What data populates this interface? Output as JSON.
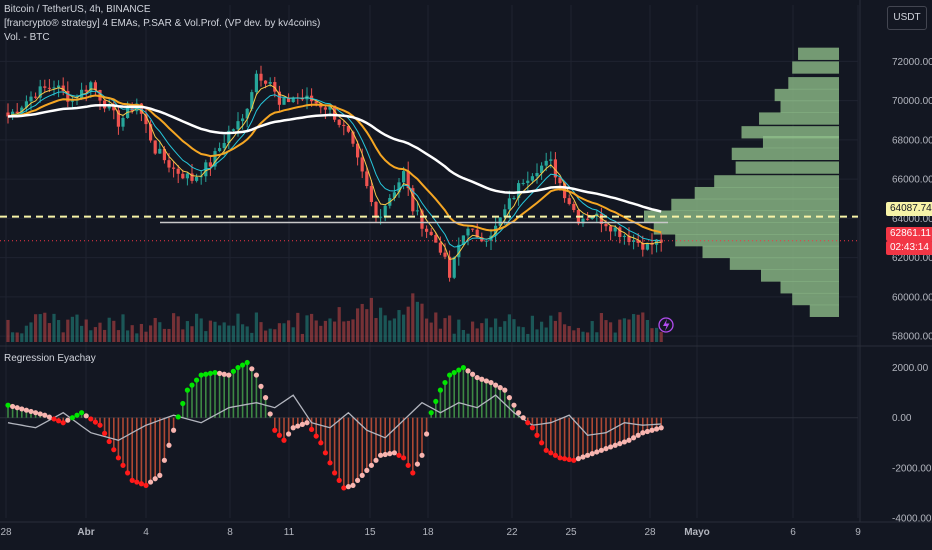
{
  "header": {
    "title": "Bitcoin / TetherUS, 4h, BINANCE",
    "indicator": "[francrypto® strategy] 4 EMAs, P.SAR & Vol.Prof. (VP dev. by kv4coins)",
    "volume_label": "Vol. - BTC",
    "currency_button": "USDT"
  },
  "subpane": {
    "title": "Regression Eyachay"
  },
  "price_badges": {
    "line_price": "64087.74",
    "last_price": "62861.11",
    "countdown": "02:43:14"
  },
  "colors": {
    "background": "#131722",
    "up": "#26a69a",
    "down": "#ef5350",
    "ema_yellow": "#f7c948",
    "ema_cyan": "#26c6da",
    "ema_orange": "#f5a623",
    "ema_white": "#ffffff",
    "volume_profile": "#8fbf8a",
    "osc_green": "#00e600",
    "osc_red": "#ff1a1a",
    "osc_pink": "#f8b5b0"
  },
  "chart_data": [
    {
      "type": "candlestick",
      "title": "Bitcoin / TetherUS, 4h, BINANCE",
      "y_ticks": [
        "72000.00",
        "70000.00",
        "68000.00",
        "66000.00",
        "64000.00",
        "62000.00",
        "60000.00",
        "58000.00"
      ],
      "ylim": [
        57700,
        73600
      ],
      "x_ticks": [
        "28",
        "Abr",
        "4",
        "8",
        "11",
        "15",
        "18",
        "22",
        "25",
        "28",
        "Mayo",
        "6",
        "9"
      ],
      "close_path": [
        [
          0,
          69200
        ],
        [
          6,
          70400
        ],
        [
          10,
          70800
        ],
        [
          14,
          70000
        ],
        [
          18,
          70900
        ],
        [
          20,
          70200
        ],
        [
          24,
          68900
        ],
        [
          28,
          69900
        ],
        [
          32,
          67500
        ],
        [
          36,
          66500
        ],
        [
          40,
          66000
        ],
        [
          44,
          66800
        ],
        [
          48,
          68400
        ],
        [
          51,
          69000
        ],
        [
          54,
          71400
        ],
        [
          57,
          71000
        ],
        [
          59,
          69700
        ],
        [
          62,
          70200
        ],
        [
          66,
          70000
        ],
        [
          70,
          69600
        ],
        [
          74,
          68200
        ],
        [
          78,
          65500
        ],
        [
          80,
          64000
        ],
        [
          84,
          65500
        ],
        [
          86,
          66300
        ],
        [
          88,
          64500
        ],
        [
          91,
          63400
        ],
        [
          94,
          62500
        ],
        [
          96,
          61000
        ],
        [
          98,
          62600
        ],
        [
          100,
          63700
        ],
        [
          102,
          62800
        ],
        [
          106,
          63500
        ],
        [
          109,
          64800
        ],
        [
          112,
          66000
        ],
        [
          115,
          66600
        ],
        [
          118,
          66800
        ],
        [
          121,
          65300
        ],
        [
          124,
          64000
        ],
        [
          127,
          64200
        ],
        [
          130,
          63800
        ],
        [
          133,
          63300
        ],
        [
          136,
          62900
        ],
        [
          139,
          62600
        ],
        [
          142,
          62861.11
        ]
      ],
      "volume_profile": {
        "price": [
          72700,
          72000,
          71200,
          70600,
          70000,
          69400,
          68700,
          68200,
          67600,
          66900,
          66200,
          65600,
          65000,
          64400,
          63800,
          63200,
          62600,
          62000,
          61400,
          60800,
          60200,
          59600
        ],
        "size": [
          0.21,
          0.24,
          0.26,
          0.33,
          0.3,
          0.41,
          0.5,
          0.39,
          0.55,
          0.53,
          0.64,
          0.74,
          0.86,
          1.0,
          0.95,
          0.84,
          0.7,
          0.56,
          0.4,
          0.3,
          0.24,
          0.15
        ]
      },
      "horizontal_lines": [
        64087.74,
        62861.11
      ]
    },
    {
      "type": "line",
      "title": "Regression Eyachay",
      "y_ticks": [
        "2000.00",
        "0.00",
        "-2000.00",
        "-4000.00"
      ],
      "ylim": [
        -4000,
        2700
      ],
      "x_ticks": [
        "28",
        "Abr",
        "4",
        "8",
        "11",
        "15",
        "18",
        "22",
        "25",
        "28",
        "Mayo",
        "6",
        "9"
      ],
      "regression": [
        [
          0,
          500
        ],
        [
          4,
          300
        ],
        [
          8,
          100
        ],
        [
          12,
          -200
        ],
        [
          16,
          200
        ],
        [
          20,
          -300
        ],
        [
          24,
          -1600
        ],
        [
          27,
          -2500
        ],
        [
          30,
          -2700
        ],
        [
          33,
          -2300
        ],
        [
          36,
          -500
        ],
        [
          39,
          1100
        ],
        [
          42,
          1700
        ],
        [
          45,
          1800
        ],
        [
          48,
          1700
        ],
        [
          50,
          2000
        ],
        [
          52,
          2200
        ],
        [
          54,
          1700
        ],
        [
          56,
          800
        ],
        [
          58,
          -500
        ],
        [
          60,
          -900
        ],
        [
          62,
          -400
        ],
        [
          65,
          -200
        ],
        [
          68,
          -1000
        ],
        [
          71,
          -2200
        ],
        [
          73,
          -2800
        ],
        [
          75,
          -2700
        ],
        [
          78,
          -2100
        ],
        [
          81,
          -1500
        ],
        [
          84,
          -1400
        ],
        [
          86,
          -1600
        ],
        [
          88,
          -2200
        ],
        [
          90,
          -1500
        ],
        [
          92,
          200
        ],
        [
          94,
          1100
        ],
        [
          96,
          1700
        ],
        [
          99,
          2000
        ],
        [
          102,
          1600
        ],
        [
          105,
          1400
        ],
        [
          108,
          1100
        ],
        [
          111,
          200
        ],
        [
          114,
          -400
        ],
        [
          117,
          -1300
        ],
        [
          120,
          -1600
        ],
        [
          123,
          -1700
        ],
        [
          126,
          -1500
        ],
        [
          129,
          -1300
        ],
        [
          132,
          -1100
        ],
        [
          135,
          -900
        ],
        [
          138,
          -600
        ],
        [
          142,
          -400
        ]
      ],
      "signal": [
        [
          0,
          -200
        ],
        [
          6,
          -400
        ],
        [
          12,
          200
        ],
        [
          18,
          -600
        ],
        [
          24,
          -900
        ],
        [
          30,
          -300
        ],
        [
          36,
          100
        ],
        [
          42,
          -200
        ],
        [
          48,
          400
        ],
        [
          54,
          600
        ],
        [
          58,
          400
        ],
        [
          62,
          900
        ],
        [
          66,
          -200
        ],
        [
          70,
          -400
        ],
        [
          74,
          200
        ],
        [
          78,
          -500
        ],
        [
          82,
          -800
        ],
        [
          86,
          -100
        ],
        [
          90,
          600
        ],
        [
          94,
          200
        ],
        [
          98,
          600
        ],
        [
          102,
          400
        ],
        [
          106,
          900
        ],
        [
          110,
          200
        ],
        [
          114,
          -300
        ],
        [
          118,
          -200
        ],
        [
          122,
          100
        ],
        [
          126,
          -700
        ],
        [
          130,
          -600
        ],
        [
          134,
          -200
        ],
        [
          138,
          -300
        ],
        [
          142,
          -250
        ]
      ]
    }
  ]
}
